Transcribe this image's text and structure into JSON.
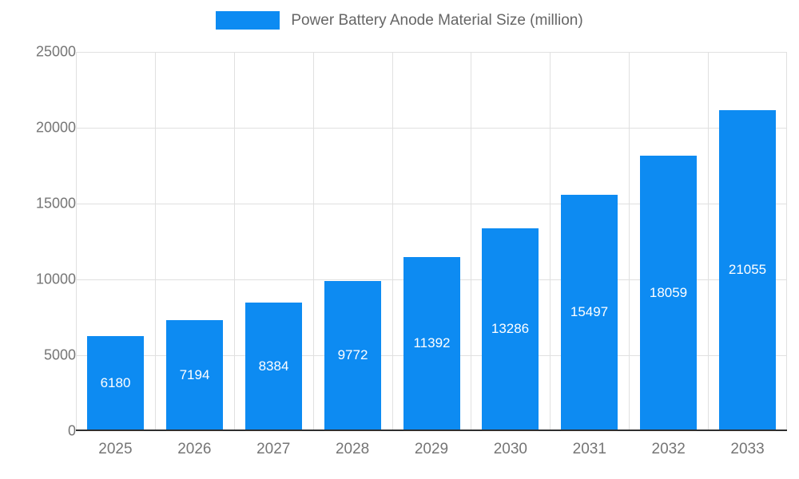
{
  "chart_data": {
    "type": "bar",
    "title": "Power Battery Anode Material Size (million)",
    "categories": [
      "2025",
      "2026",
      "2027",
      "2028",
      "2029",
      "2030",
      "2031",
      "2032",
      "2033"
    ],
    "values": [
      6180,
      7194,
      8384,
      9772,
      11392,
      13286,
      15497,
      18059,
      21055
    ],
    "xlabel": "",
    "ylabel": "",
    "ylim": [
      0,
      25000
    ],
    "y_ticks": [
      0,
      5000,
      10000,
      15000,
      20000,
      25000
    ],
    "grid": true,
    "legend_position": "top",
    "bar_color": "#0d8bf2",
    "value_label_color": "#ffffff",
    "axis_label_color": "#757575",
    "gridline_color": "#e0e0e0"
  }
}
